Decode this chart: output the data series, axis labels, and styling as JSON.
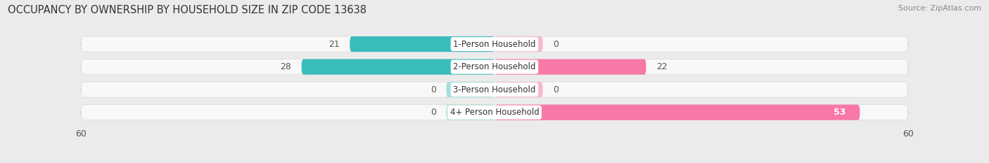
{
  "title": "OCCUPANCY BY OWNERSHIP BY HOUSEHOLD SIZE IN ZIP CODE 13638",
  "source": "Source: ZipAtlas.com",
  "categories": [
    "1-Person Household",
    "2-Person Household",
    "3-Person Household",
    "4+ Person Household"
  ],
  "owner_values": [
    21,
    28,
    0,
    0
  ],
  "renter_values": [
    0,
    22,
    0,
    53
  ],
  "owner_color": "#3bbcbc",
  "owner_color_light": "#a8dede",
  "renter_color": "#f878a8",
  "renter_color_light": "#f8b8cc",
  "axis_limit": 60,
  "min_bar_width": 7,
  "bg_color": "#ebebeb",
  "bar_bg_color": "#f8f8f8",
  "bar_gap_color": "#e0e0e0",
  "bar_height": 0.68,
  "title_fontsize": 10.5,
  "cat_fontsize": 8.5,
  "value_fontsize": 9,
  "source_fontsize": 8,
  "legend_fontsize": 9
}
